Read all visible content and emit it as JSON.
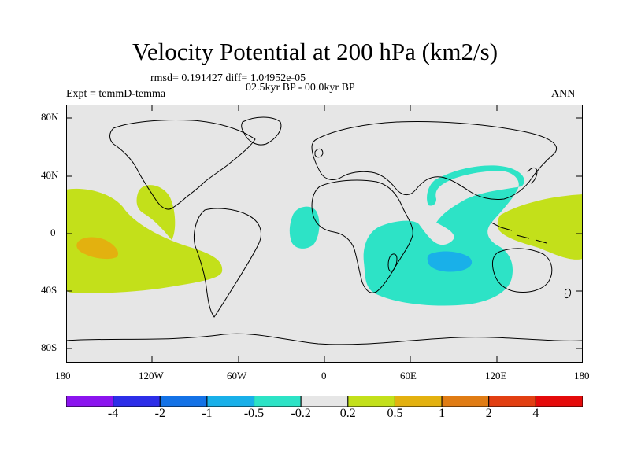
{
  "title": "Velocity Potential at 200 hPa (km2/s)",
  "stats": "rmsd= 0.191427 diff= 1.04952e-05",
  "left_label": "Expt = temmD-temma",
  "center_label": "02.5kyr BP - 00.0kyr BP",
  "right_label": "ANN",
  "y_ticks": [
    "80N",
    "40N",
    "0",
    "40S",
    "80S"
  ],
  "x_ticks": [
    "180",
    "120W",
    "60W",
    "0",
    "60E",
    "120E",
    "180"
  ],
  "colorbar": {
    "colors": [
      "#8b14ee",
      "#2d2ee8",
      "#1472e6",
      "#19b0e9",
      "#2de3c6",
      "#e6e6e6",
      "#c3e01a",
      "#e3b10f",
      "#e07c14",
      "#e23f12",
      "#e40a0a"
    ],
    "labels": [
      "-4",
      "-2",
      "-1",
      "-0.5",
      "-0.2",
      "0.2",
      "0.5",
      "1",
      "2",
      "4"
    ]
  },
  "fill_colors": {
    "background": "#e6e6e6",
    "neg_weak": "#2de3c6",
    "neg_mid": "#19b0e9",
    "pos_weak": "#c3e01a",
    "pos_mid": "#e3b10f"
  }
}
